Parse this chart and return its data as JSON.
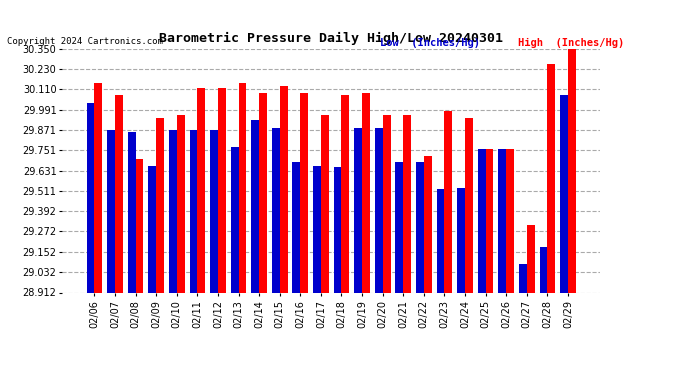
{
  "title": "Barometric Pressure Daily High/Low 20240301",
  "copyright": "Copyright 2024 Cartronics.com",
  "legend_low": "Low  (Inches/Hg)",
  "legend_high": "High  (Inches/Hg)",
  "dates": [
    "02/06",
    "02/07",
    "02/08",
    "02/09",
    "02/10",
    "02/11",
    "02/12",
    "02/13",
    "02/14",
    "02/15",
    "02/16",
    "02/17",
    "02/18",
    "02/19",
    "02/20",
    "02/21",
    "02/22",
    "02/23",
    "02/24",
    "02/25",
    "02/26",
    "02/27",
    "02/28",
    "02/29"
  ],
  "high": [
    30.15,
    30.08,
    29.7,
    29.94,
    29.96,
    30.12,
    30.12,
    30.15,
    30.09,
    30.13,
    30.09,
    29.96,
    30.08,
    30.09,
    29.96,
    29.96,
    29.72,
    29.98,
    29.94,
    29.76,
    29.76,
    29.31,
    30.26,
    30.38
  ],
  "low": [
    30.03,
    29.87,
    29.86,
    29.66,
    29.87,
    29.87,
    29.87,
    29.77,
    29.93,
    29.88,
    29.68,
    29.66,
    29.65,
    29.88,
    29.88,
    29.68,
    29.68,
    29.52,
    29.53,
    29.76,
    29.76,
    29.08,
    29.18,
    30.08
  ],
  "ymin": 28.912,
  "ymax": 30.35,
  "yticks": [
    28.912,
    29.032,
    29.152,
    29.272,
    29.392,
    29.511,
    29.631,
    29.751,
    29.871,
    29.991,
    30.11,
    30.23,
    30.35
  ],
  "bar_width": 0.38,
  "low_color": "#0000cc",
  "high_color": "#ff0000",
  "bg_color": "#ffffff",
  "grid_color": "#aaaaaa",
  "title_color": "#000000",
  "copyright_color": "#000000",
  "legend_low_color": "#0000cc",
  "legend_high_color": "#ff0000"
}
